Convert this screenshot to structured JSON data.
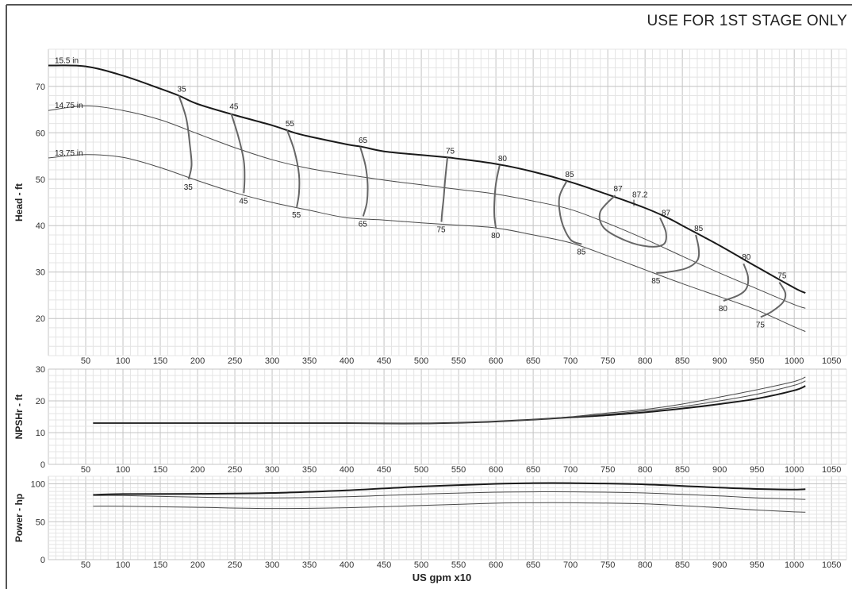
{
  "header": {
    "banner": "USE FOR 1ST STAGE ONLY"
  },
  "colors": {
    "grid_minor": "#e4e4e4",
    "grid_major": "#c4c4c4",
    "curve_thick": "#1a1a1a",
    "curve_thin": "#4a4a4a",
    "efficiency": "#666666"
  },
  "xaxis": {
    "label": "US gpm x10",
    "ticks": [
      50,
      100,
      150,
      200,
      250,
      300,
      350,
      400,
      450,
      500,
      550,
      600,
      650,
      700,
      750,
      800,
      850,
      900,
      950,
      1000,
      1050
    ],
    "range": [
      0,
      1070
    ]
  },
  "chart_data": [
    {
      "type": "line",
      "name": "head",
      "ylabel": "Head - ft",
      "xlabel": "",
      "xlim": [
        0,
        1070
      ],
      "ylim": [
        12,
        78
      ],
      "yticks": [
        20,
        30,
        40,
        50,
        60,
        70
      ],
      "grid": true,
      "series": [
        {
          "name": "15.5 in",
          "weight": "thick",
          "x": [
            0,
            50,
            100,
            150,
            175,
            200,
            250,
            300,
            330,
            350,
            400,
            420,
            450,
            500,
            535,
            550,
            600,
            650,
            700,
            750,
            800,
            830,
            850,
            900,
            950,
            1000,
            1015
          ],
          "y": [
            74.5,
            74.3,
            72.3,
            69.5,
            68.0,
            66.2,
            63.8,
            61.6,
            60.0,
            59.2,
            57.5,
            57.0,
            56.0,
            55.2,
            54.7,
            54.4,
            53.3,
            51.6,
            49.4,
            46.7,
            43.8,
            41.7,
            40.0,
            35.7,
            31.1,
            26.6,
            25.5
          ]
        },
        {
          "name": "14.75 in",
          "weight": "thin",
          "x": [
            0,
            50,
            100,
            150,
            200,
            250,
            300,
            350,
            400,
            450,
            500,
            550,
            600,
            650,
            700,
            750,
            800,
            850,
            900,
            950,
            1000,
            1015
          ],
          "y": [
            64.8,
            65.8,
            64.8,
            62.8,
            59.8,
            56.8,
            54.2,
            52.3,
            51.0,
            49.8,
            48.8,
            47.8,
            46.8,
            45.3,
            43.5,
            40.5,
            37.1,
            33.4,
            29.8,
            26.4,
            23.0,
            22.2
          ]
        },
        {
          "name": "13.75 in",
          "weight": "thin",
          "x": [
            0,
            50,
            100,
            150,
            200,
            250,
            300,
            350,
            400,
            450,
            500,
            550,
            600,
            650,
            700,
            750,
            800,
            850,
            900,
            950,
            1000,
            1015
          ],
          "y": [
            54.6,
            55.3,
            54.7,
            52.5,
            49.7,
            47.1,
            45.0,
            43.3,
            41.7,
            41.2,
            40.6,
            40.1,
            39.5,
            38.0,
            36.3,
            33.5,
            30.5,
            27.5,
            24.7,
            21.8,
            18.2,
            17.2
          ]
        }
      ],
      "efficiency_contours": [
        {
          "label": "35",
          "x": [
            175,
            185,
            190,
            192,
            188
          ],
          "y": [
            68.0,
            63.0,
            57.0,
            53.0,
            50.0
          ],
          "top_label": "35",
          "bottom_label": "35"
        },
        {
          "label": "45",
          "x": [
            245,
            255,
            262,
            263,
            262
          ],
          "y": [
            64.2,
            59.0,
            54.0,
            50.0,
            47.0
          ],
          "top_label": "45",
          "bottom_label": "45"
        },
        {
          "label": "55",
          "x": [
            320,
            330,
            336,
            336,
            333
          ],
          "y": [
            60.6,
            56.0,
            51.0,
            47.0,
            44.0
          ],
          "top_label": "55",
          "bottom_label": "55"
        },
        {
          "label": "65",
          "x": [
            418,
            425,
            428,
            427,
            422
          ],
          "y": [
            57.0,
            53.0,
            49.0,
            45.0,
            42.0
          ],
          "top_label": "65",
          "bottom_label": "65"
        },
        {
          "label": "75",
          "x": [
            535,
            532,
            530,
            528,
            527
          ],
          "y": [
            54.7,
            50.0,
            46.0,
            43.0,
            40.8
          ],
          "top_label": "75",
          "bottom_label": "75"
        },
        {
          "label": "80",
          "x": [
            605,
            600,
            598,
            598,
            600
          ],
          "y": [
            53.0,
            49.0,
            45.0,
            42.0,
            39.5
          ],
          "top_label": "80",
          "bottom_label": "80"
        },
        {
          "label": "85",
          "x": [
            695,
            685,
            688,
            700,
            715
          ],
          "y": [
            49.6,
            46.0,
            41.0,
            37.0,
            36.0
          ],
          "top_label": "85",
          "bottom_label": "85"
        },
        {
          "label": "87",
          "x": [
            760,
            740,
            745,
            775,
            805,
            825,
            828,
            820
          ],
          "y": [
            46.5,
            43.0,
            39.5,
            36.7,
            35.5,
            36.0,
            38.5,
            41.7
          ],
          "top_label": "87",
          "right_label": "87"
        },
        {
          "label": "85",
          "x": [
            868,
            872,
            870,
            855,
            830,
            815
          ],
          "y": [
            38.0,
            35.0,
            32.5,
            30.8,
            30.0,
            29.8
          ],
          "top_label": "85",
          "bottom_label": "85"
        },
        {
          "label": "80",
          "x": [
            932,
            938,
            936,
            925,
            905
          ],
          "y": [
            31.8,
            29.0,
            26.5,
            25.0,
            23.8
          ],
          "top_label": "80",
          "bottom_label": "80"
        },
        {
          "label": "75",
          "x": [
            980,
            988,
            985,
            970,
            955
          ],
          "y": [
            27.8,
            25.5,
            23.5,
            21.5,
            20.3
          ],
          "top_label": "75",
          "bottom_label": "75"
        }
      ],
      "bep_marker": {
        "label": "87.2",
        "x": 785,
        "y": 44.9
      }
    },
    {
      "type": "line",
      "name": "npsh",
      "ylabel": "NPSHr - ft",
      "xlabel": "",
      "xlim": [
        0,
        1070
      ],
      "ylim": [
        0,
        30
      ],
      "yticks": [
        0,
        10,
        20,
        30
      ],
      "grid": true,
      "series": [
        {
          "name": "15.5 in",
          "weight": "thick",
          "x": [
            60,
            100,
            200,
            300,
            400,
            450,
            500,
            550,
            600,
            650,
            700,
            750,
            800,
            850,
            900,
            950,
            1000,
            1015
          ],
          "y": [
            13.0,
            13.0,
            13.0,
            13.0,
            13.0,
            12.9,
            12.9,
            13.1,
            13.5,
            14.1,
            14.8,
            15.5,
            16.4,
            17.6,
            19.0,
            20.7,
            23.3,
            24.7
          ]
        },
        {
          "name": "14.75 in",
          "weight": "thin",
          "x": [
            60,
            100,
            200,
            300,
            400,
            450,
            500,
            550,
            600,
            650,
            700,
            750,
            800,
            850,
            900,
            950,
            1000,
            1015
          ],
          "y": [
            13.0,
            13.0,
            13.0,
            13.0,
            13.0,
            12.9,
            12.9,
            13.1,
            13.5,
            14.1,
            14.9,
            15.8,
            16.9,
            18.2,
            20.0,
            22.1,
            24.9,
            26.3
          ]
        },
        {
          "name": "13.75 in",
          "weight": "thin",
          "x": [
            60,
            100,
            200,
            300,
            400,
            450,
            500,
            550,
            600,
            650,
            700,
            750,
            800,
            850,
            900,
            950,
            1000,
            1015
          ],
          "y": [
            13.0,
            13.0,
            13.0,
            13.0,
            13.0,
            12.9,
            12.9,
            13.1,
            13.5,
            14.1,
            15.0,
            16.2,
            17.3,
            19.0,
            21.2,
            23.5,
            26.1,
            27.5
          ]
        }
      ]
    },
    {
      "type": "line",
      "name": "power",
      "ylabel": "Power - hp",
      "xlabel": "US gpm x10",
      "xlim": [
        0,
        1070
      ],
      "ylim": [
        0,
        110
      ],
      "yticks": [
        0,
        50,
        100
      ],
      "grid": true,
      "series": [
        {
          "name": "15.5 in",
          "weight": "thick",
          "x": [
            60,
            100,
            200,
            300,
            400,
            500,
            600,
            650,
            700,
            800,
            900,
            950,
            1000,
            1015
          ],
          "y": [
            85.5,
            86.5,
            86.8,
            88.0,
            91.5,
            96.5,
            100.0,
            101.0,
            101.0,
            99.3,
            95.0,
            93.2,
            92.5,
            93.0
          ]
        },
        {
          "name": "14.75 in",
          "weight": "thin",
          "x": [
            60,
            100,
            200,
            300,
            400,
            500,
            600,
            650,
            700,
            800,
            900,
            950,
            1000,
            1015
          ],
          "y": [
            84.5,
            84.5,
            82.5,
            81.5,
            83.0,
            86.5,
            89.0,
            89.5,
            89.5,
            88.0,
            84.0,
            81.5,
            80.0,
            79.5
          ]
        },
        {
          "name": "13.75 in",
          "weight": "thin",
          "x": [
            60,
            100,
            200,
            300,
            400,
            500,
            600,
            650,
            700,
            800,
            900,
            950,
            1000,
            1015
          ],
          "y": [
            70.5,
            70.5,
            69.0,
            67.5,
            68.5,
            71.5,
            74.5,
            75.0,
            75.0,
            73.5,
            68.5,
            65.5,
            63.0,
            62.5
          ]
        }
      ]
    }
  ]
}
